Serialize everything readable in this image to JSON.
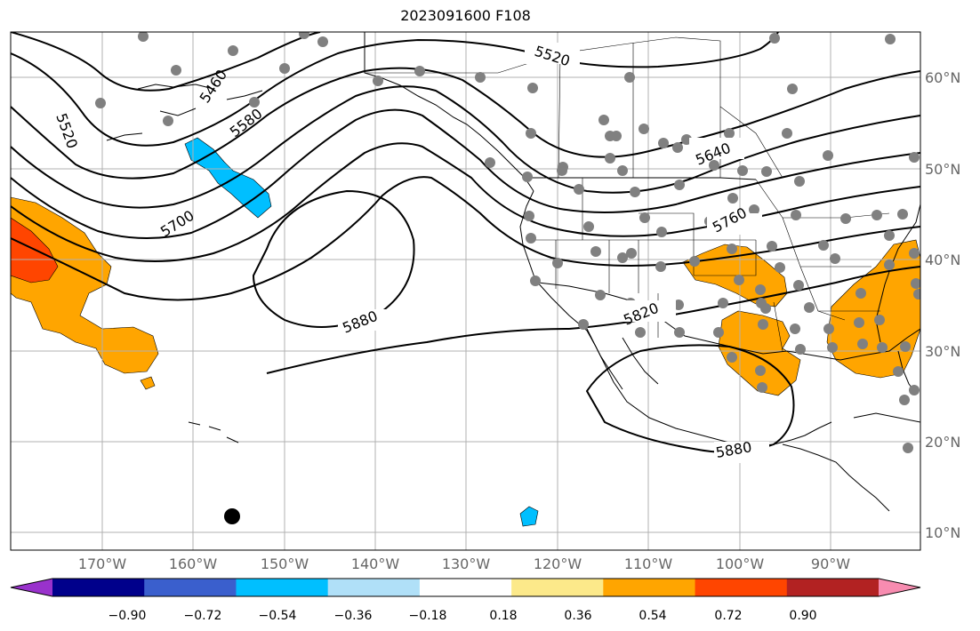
{
  "title": "2023091600 F108",
  "lat_labels": [
    "60°N",
    "50°N",
    "40°N",
    "30°N",
    "20°N",
    "10°N"
  ],
  "lon_labels": [
    "170°W",
    "160°W",
    "150°W",
    "140°W",
    "130°W",
    "120°W",
    "110°W",
    "100°W",
    "90°W"
  ],
  "contour_labels": [
    "5520",
    "5460",
    "5580",
    "5520",
    "5640",
    "5700",
    "5760",
    "5880",
    "5820",
    "5880"
  ],
  "colorbar": {
    "colors": [
      "#9932cc",
      "#00008b",
      "#3a5fcd",
      "#00bfff",
      "#b0e0f8",
      "#ffffff",
      "#fce98a",
      "#ffa500",
      "#ff4500",
      "#b22222",
      "#f78cb0"
    ],
    "tick_labels": [
      "−0.90",
      "−0.72",
      "−0.54",
      "−0.36",
      "−0.18",
      "0.18",
      "0.36",
      "0.54",
      "0.72",
      "0.90"
    ]
  },
  "colors": {
    "station": "#808080",
    "positive_anomaly": "#ffa500",
    "strong_positive": "#ff4500",
    "negative_anomaly": "#00bfff",
    "contour": "#000000",
    "grid": "#b0b0b0"
  }
}
